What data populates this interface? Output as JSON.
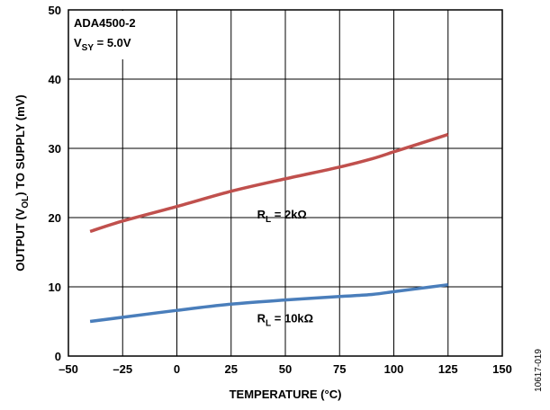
{
  "chart_data": {
    "type": "line",
    "xlabel": "TEMPERATURE (°C)",
    "ylabel": {
      "pre": "OUTPUT (V",
      "sub": "OL",
      "post": ") TO SUPPLY (mV)"
    },
    "xlim": [
      -50,
      150
    ],
    "ylim": [
      0,
      50
    ],
    "xticks": [
      {
        "value": -50,
        "label": "–50"
      },
      {
        "value": -25,
        "label": "–25"
      },
      {
        "value": 0,
        "label": "0"
      },
      {
        "value": 25,
        "label": "25"
      },
      {
        "value": 50,
        "label": "50"
      },
      {
        "value": 75,
        "label": "75"
      },
      {
        "value": 100,
        "label": "100"
      },
      {
        "value": 125,
        "label": "125"
      },
      {
        "value": 150,
        "label": "150"
      }
    ],
    "yticks": [
      {
        "value": 0,
        "label": "0"
      },
      {
        "value": 10,
        "label": "10"
      },
      {
        "value": 20,
        "label": "20"
      },
      {
        "value": 30,
        "label": "30"
      },
      {
        "value": 40,
        "label": "40"
      },
      {
        "value": 50,
        "label": "50"
      }
    ],
    "grid": true,
    "annotation": {
      "line1": "ADA4500-2",
      "line2": {
        "pre": "V",
        "sub": "SY",
        "post": " = 5.0V"
      }
    },
    "series": [
      {
        "label": {
          "pre": "R",
          "sub": "L",
          "post": " = 2kΩ"
        },
        "color": "#c0504d",
        "x": [
          -40,
          -25,
          0,
          25,
          50,
          75,
          90,
          100,
          110,
          125
        ],
        "y": [
          18.0,
          19.5,
          21.6,
          23.8,
          25.6,
          27.3,
          28.5,
          29.5,
          30.5,
          32.0
        ]
      },
      {
        "label": {
          "pre": "R",
          "sub": "L",
          "post": " = 10kΩ"
        },
        "color": "#4a7ebb",
        "x": [
          -40,
          -25,
          0,
          25,
          50,
          75,
          90,
          100,
          110,
          125
        ],
        "y": [
          5.0,
          5.6,
          6.6,
          7.5,
          8.1,
          8.6,
          8.9,
          9.3,
          9.7,
          10.3
        ]
      }
    ]
  },
  "figure_id": "10617-019"
}
